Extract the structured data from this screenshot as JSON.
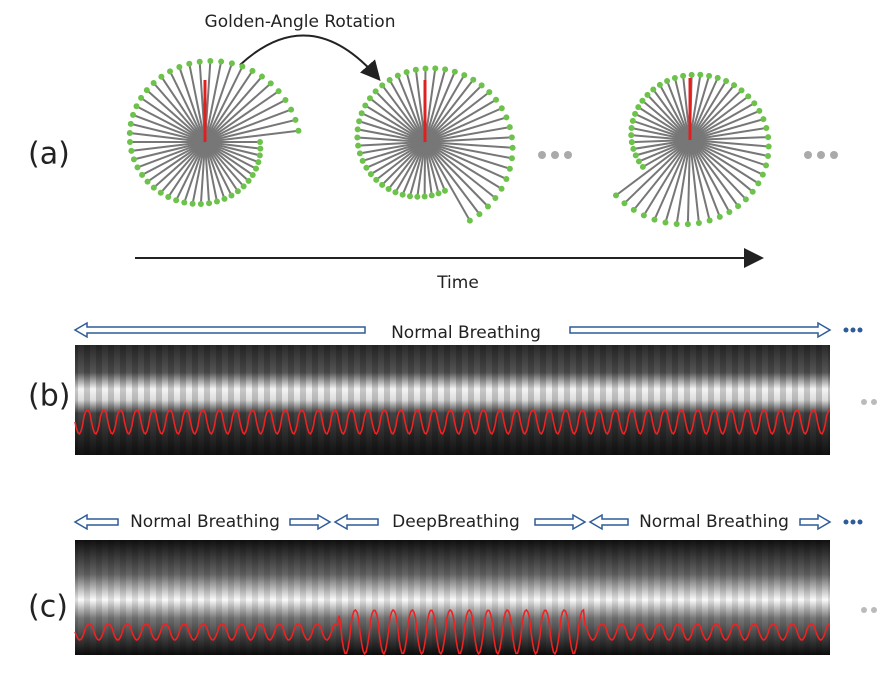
{
  "panels": [
    {
      "label": "(a)",
      "title": "Golden-Angle Rotation",
      "axis_label": "Time"
    },
    {
      "label": "(b)",
      "segments": [
        "Normal Breathing"
      ]
    },
    {
      "label": "(c)",
      "segments": [
        "Normal Breathing",
        "DeepBreathing",
        "Normal Breathing"
      ]
    }
  ]
}
